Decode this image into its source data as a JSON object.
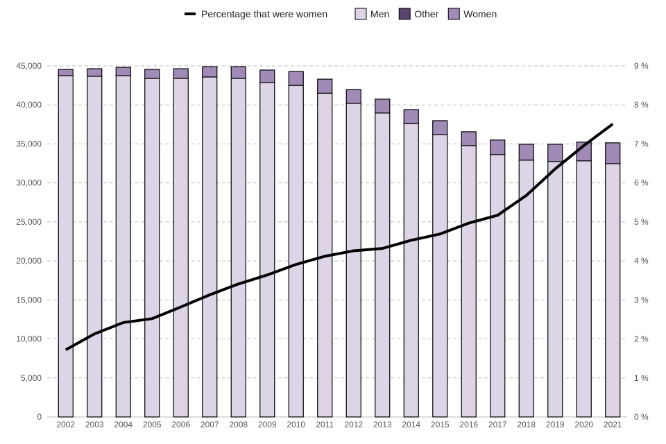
{
  "chart_data": {
    "type": "bar",
    "subtype": "stacked bar with line on secondary axis",
    "categories": [
      "2002",
      "2003",
      "2004",
      "2005",
      "2006",
      "2007",
      "2008",
      "2009",
      "2010",
      "2011",
      "2012",
      "2013",
      "2014",
      "2015",
      "2016",
      "2017",
      "2018",
      "2019",
      "2020",
      "2021"
    ],
    "series": [
      {
        "name": "Men",
        "type": "bar",
        "axis": "left",
        "color": "#ddd5e6",
        "values": [
          43750,
          43670,
          43750,
          43400,
          43400,
          43580,
          43400,
          42870,
          42500,
          41500,
          40200,
          38960,
          37600,
          36200,
          34780,
          33630,
          32920,
          32740,
          32830,
          32470
        ]
      },
      {
        "name": "Other",
        "type": "bar",
        "axis": "left",
        "color": "#5a4470",
        "values": [
          0,
          0,
          0,
          0,
          0,
          0,
          0,
          0,
          0,
          0,
          0,
          0,
          0,
          0,
          0,
          0,
          0,
          0,
          0,
          0
        ]
      },
      {
        "name": "Women",
        "type": "bar",
        "axis": "left",
        "color": "#a08ab6",
        "values": [
          800,
          970,
          1070,
          1160,
          1240,
          1320,
          1500,
          1600,
          1790,
          1800,
          1780,
          1780,
          1800,
          1780,
          1780,
          1870,
          2040,
          2220,
          2400,
          2670
        ]
      },
      {
        "name": "Percentage that were women",
        "type": "line",
        "axis": "right",
        "color": "#000000",
        "values": [
          1.72,
          2.13,
          2.42,
          2.52,
          2.82,
          3.13,
          3.41,
          3.64,
          3.91,
          4.12,
          4.26,
          4.32,
          4.53,
          4.69,
          4.97,
          5.17,
          5.68,
          6.36,
          6.96,
          7.51
        ]
      }
    ],
    "y_left": {
      "lim": [
        0,
        45000
      ],
      "ticks": [
        "0",
        "5,000",
        "10,000",
        "15,000",
        "20,000",
        "25,000",
        "30,000",
        "35,000",
        "40,000",
        "45,000"
      ]
    },
    "y_right": {
      "lim": [
        0,
        9
      ],
      "ticks": [
        "0 %",
        "1 %",
        "2 %",
        "3 %",
        "4 %",
        "5 %",
        "6 %",
        "7 %",
        "8 %",
        "9 %"
      ]
    },
    "grid": "horizontal dashed",
    "legend_position": "top"
  }
}
